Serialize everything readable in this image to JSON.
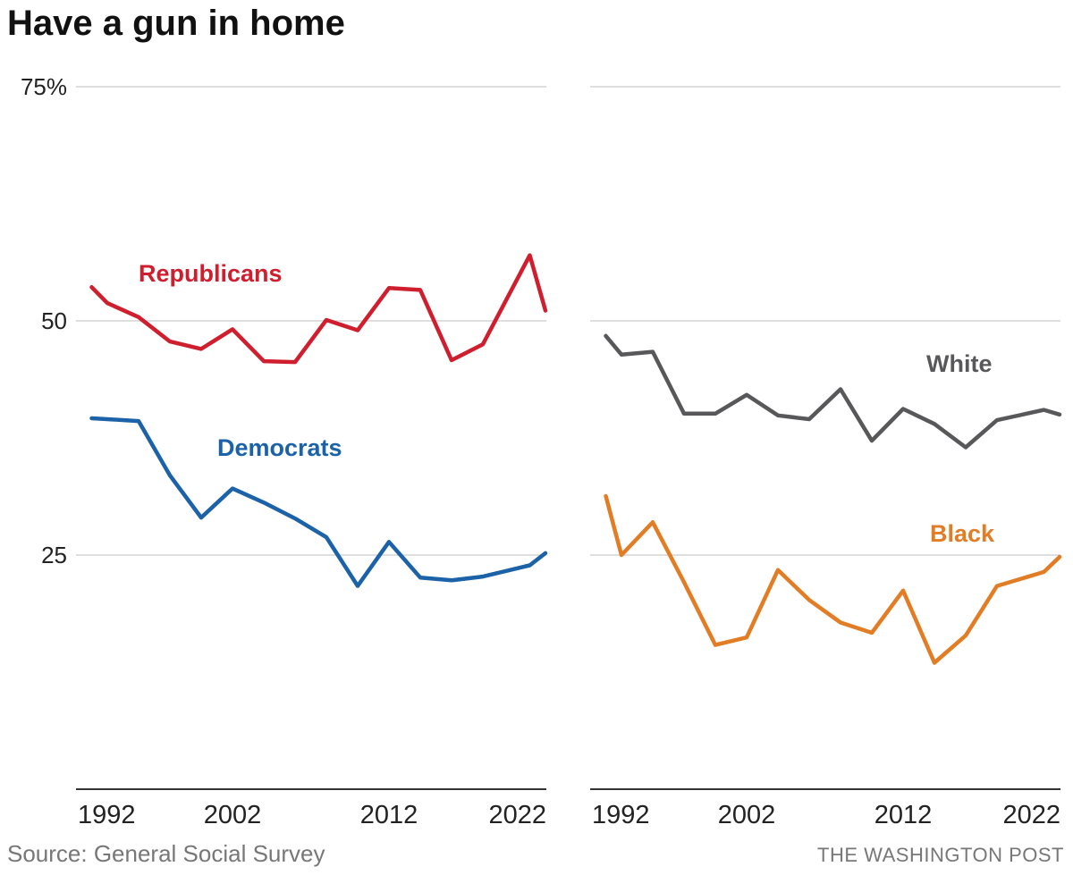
{
  "title": "Have a gun in home",
  "source": "Source: General Social Survey",
  "credit": "THE WASHINGTON POST",
  "colors": {
    "Republicans": "#cf1f2e",
    "Democrats": "#1b62a8",
    "White": "#58585a",
    "Black": "#e27d26",
    "grid": "#cccccc",
    "axis": "#333333"
  },
  "chart_data": [
    {
      "type": "line",
      "title": "Have a gun in home",
      "ylim": [
        0,
        75
      ],
      "yticks": [
        {
          "value": 75,
          "label": "75%"
        },
        {
          "value": 50,
          "label": "50"
        },
        {
          "value": 25,
          "label": "25"
        }
      ],
      "xticks": [
        {
          "value": 1992,
          "label": "1992"
        },
        {
          "value": 2002,
          "label": "2002"
        },
        {
          "value": 2012,
          "label": "2012"
        },
        {
          "value": 2022,
          "label": "2022"
        }
      ],
      "x": [
        1993,
        1994,
        1996,
        1998,
        2000,
        2002,
        2004,
        2006,
        2008,
        2010,
        2012,
        2014,
        2016,
        2018,
        2021,
        2022
      ],
      "series": [
        {
          "name": "Republicans",
          "values": [
            53.6,
            51.9,
            50.4,
            47.8,
            47.0,
            49.1,
            45.7,
            45.6,
            50.1,
            49.0,
            53.5,
            53.3,
            45.8,
            47.5,
            57.0,
            51.1
          ]
        },
        {
          "name": "Democrats",
          "values": [
            39.6,
            39.5,
            39.3,
            33.5,
            29.0,
            32.1,
            30.6,
            28.9,
            26.9,
            21.7,
            26.4,
            22.6,
            22.3,
            22.7,
            23.9,
            25.2
          ]
        }
      ]
    },
    {
      "type": "line",
      "ylim": [
        0,
        75
      ],
      "xticks": [
        {
          "value": 1992,
          "label": "1992"
        },
        {
          "value": 2002,
          "label": "2002"
        },
        {
          "value": 2012,
          "label": "2012"
        },
        {
          "value": 2022,
          "label": "2022"
        }
      ],
      "x": [
        1993,
        1994,
        1996,
        1998,
        2000,
        2002,
        2004,
        2006,
        2008,
        2010,
        2012,
        2014,
        2016,
        2018,
        2021,
        2022
      ],
      "series": [
        {
          "name": "White",
          "values": [
            48.4,
            46.4,
            46.7,
            40.1,
            40.1,
            42.1,
            39.9,
            39.5,
            42.7,
            37.2,
            40.6,
            39.0,
            36.5,
            39.4,
            40.5,
            40.0
          ]
        },
        {
          "name": "Black",
          "values": [
            31.3,
            25.0,
            28.5,
            22.1,
            15.4,
            16.2,
            23.4,
            20.2,
            17.8,
            16.7,
            21.2,
            13.5,
            16.4,
            21.7,
            23.2,
            24.8
          ]
        }
      ]
    }
  ]
}
